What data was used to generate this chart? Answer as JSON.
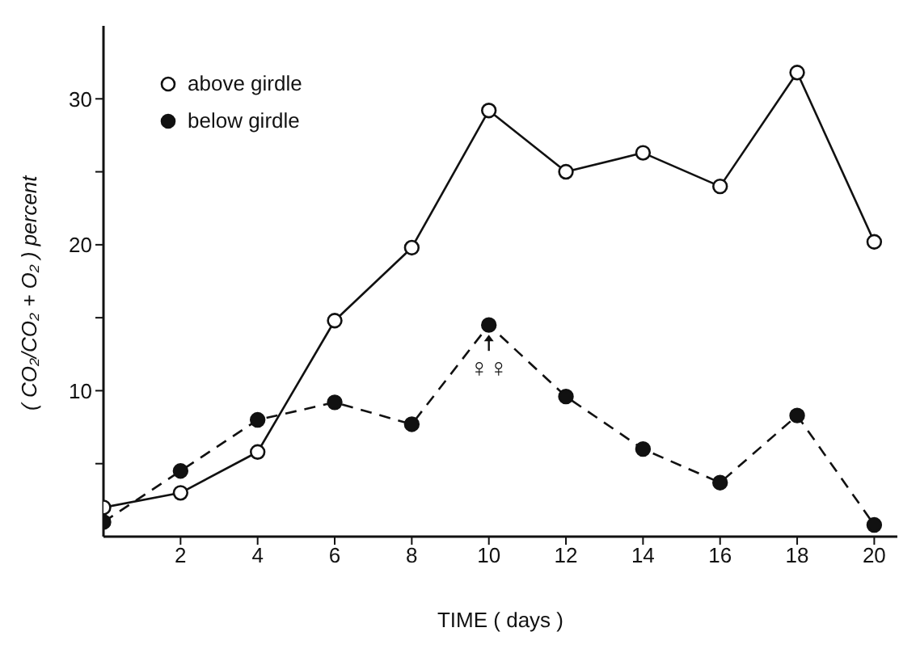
{
  "chart_data": {
    "type": "line",
    "xlabel": "TIME ( days )",
    "ylabel": "( CO₂/CO₂ + O₂ ) percent",
    "x": [
      0,
      2,
      4,
      6,
      8,
      10,
      12,
      14,
      16,
      18,
      20
    ],
    "series": [
      {
        "name": "above girdle",
        "color": "#111111",
        "line_style": "solid",
        "marker": "circle",
        "values": [
          2,
          3,
          5.8,
          14.8,
          19.8,
          29.2,
          25,
          26.3,
          24,
          31.8,
          20.2
        ]
      },
      {
        "name": "below girdle",
        "color": "#111111",
        "line_style": "dashed",
        "marker": "circle",
        "values": [
          1,
          4.5,
          8,
          9.2,
          7.7,
          14.5,
          9.6,
          6,
          3.7,
          8.3,
          0.8
        ]
      }
    ],
    "xlim": [
      0,
      20.6
    ],
    "xticks": [
      2,
      4,
      6,
      8,
      10,
      12,
      14,
      16,
      18,
      20
    ],
    "ylim": [
      0,
      35
    ],
    "yticks": [
      {
        "value": 5,
        "label": null
      },
      10,
      {
        "value": 15,
        "label": null
      },
      20,
      {
        "value": 25,
        "label": null
      },
      30
    ],
    "annotations": [
      {
        "text": "♀♀",
        "x": 10,
        "y": 14.5
      }
    ],
    "grid": false,
    "legend": "top left"
  }
}
